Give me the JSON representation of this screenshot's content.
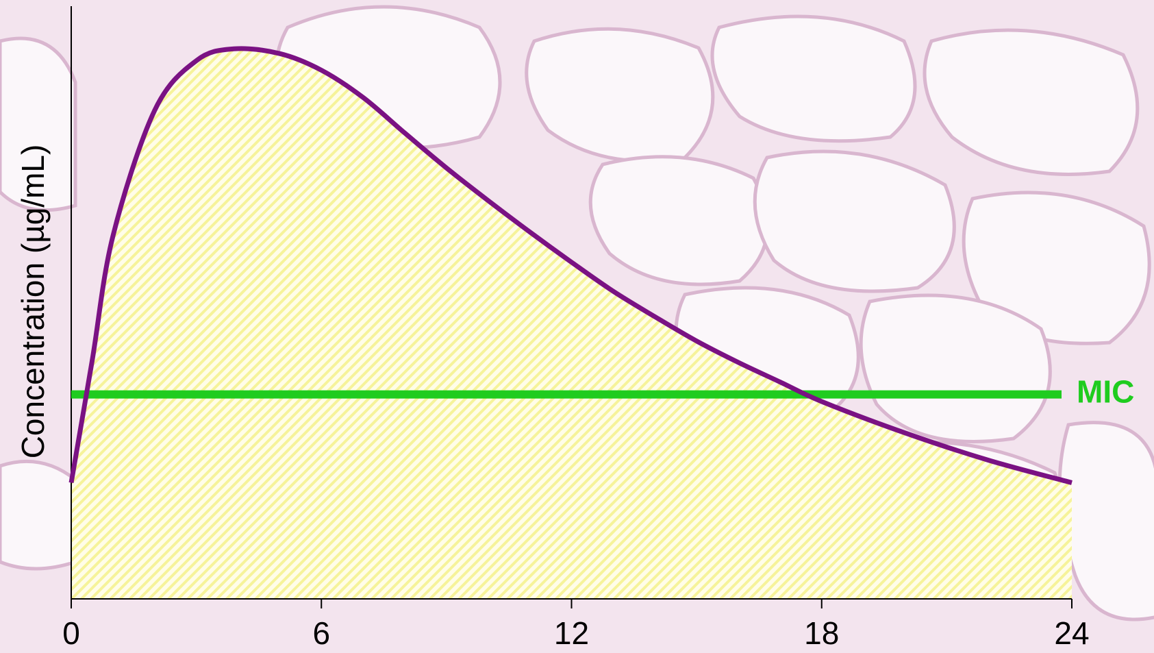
{
  "chart_data": {
    "type": "area",
    "y_label": "Concentration (µg/mL)",
    "x": [
      0,
      0.5,
      1,
      2,
      3,
      3.9,
      5,
      6,
      7,
      8,
      9,
      10,
      11,
      12,
      13,
      14,
      15,
      16,
      17,
      18,
      20,
      22,
      24
    ],
    "values": [
      19.6,
      40.1,
      61.2,
      82.4,
      90.8,
      92.8,
      92.0,
      89.2,
      84.6,
      78.6,
      72.7,
      67.2,
      61.9,
      56.8,
      51.9,
      47.6,
      43.5,
      39.9,
      36.6,
      33.3,
      28.0,
      23.4,
      19.6
    ],
    "color": "#7a1283",
    "fill_color": "#f6f39a",
    "xlim": [
      0,
      24
    ],
    "xticks": [
      0,
      6,
      12,
      18,
      24
    ],
    "ylim": [
      0,
      100
    ],
    "mic": {
      "label": "MIC",
      "value": 34.5,
      "color": "#1fcc1f"
    }
  }
}
